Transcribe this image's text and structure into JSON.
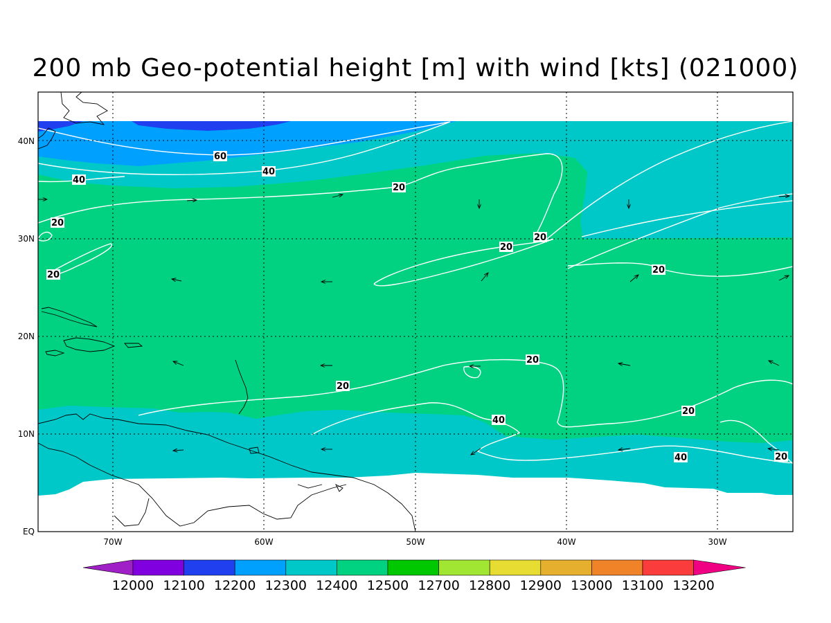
{
  "title": "200 mb Geo-potential height [m] with wind [kts] (021000)",
  "y_axis_labels": [
    "40N",
    "30N",
    "20N",
    "10N",
    "EQ"
  ],
  "x_axis_labels": [
    "70W",
    "60W",
    "50W",
    "40W",
    "30W"
  ],
  "colorbar": {
    "values": [
      "12000",
      "12100",
      "12200",
      "12300",
      "12400",
      "12500",
      "12700",
      "12800",
      "12900",
      "13000",
      "13100",
      "13200"
    ],
    "colors": [
      "#a020c8",
      "#8000e0",
      "#2040f0",
      "#00a0ff",
      "#00c8c8",
      "#00d282",
      "#00c800",
      "#a0e632",
      "#e6dc32",
      "#e6af2d",
      "#f08228",
      "#fa3c3c",
      "#f00082"
    ]
  },
  "fill_colors": {
    "band_12200": "#2040f0",
    "band_12300": "#00a0ff",
    "band_12400": "#00c8c8",
    "band_12500": "#00d282"
  },
  "contour_labels": [
    "60",
    "40",
    "40",
    "20",
    "20",
    "20",
    "20",
    "20",
    "20",
    "20",
    "20",
    "20",
    "20",
    "40",
    "40",
    "20"
  ],
  "contour_color": "#ffffff",
  "coastline_color": "#000000"
}
